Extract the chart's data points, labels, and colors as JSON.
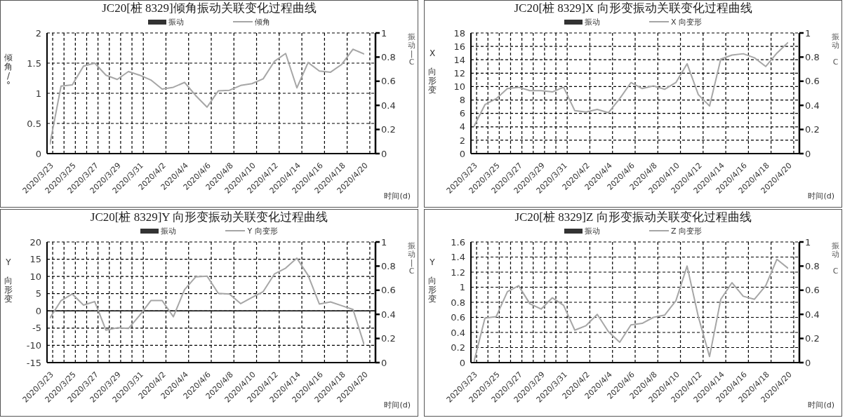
{
  "chart_data": [
    {
      "type": "line",
      "title": "JC20[桩 8329]倾角振动关联变化过程曲线",
      "xlabel": "时间(d)",
      "ylabel": "倾角/°",
      "y2label": "振动|C",
      "categories": [
        "2020/3/23",
        null,
        "2020/3/25",
        null,
        "2020/3/27",
        null,
        "2020/3/29",
        null,
        "2020/3/31",
        null,
        "2020/4/2",
        null,
        "2020/4/4",
        null,
        "2020/4/6",
        null,
        "2020/4/8",
        null,
        "2020/4/10",
        null,
        "2020/4/12",
        null,
        "2020/4/14",
        null,
        "2020/4/16",
        null,
        "2020/4/18",
        null,
        "2020/4/20"
      ],
      "series": [
        {
          "name": "振动",
          "type": "bar",
          "color": "#333333",
          "values": [
            null,
            null,
            null,
            null,
            null,
            null,
            null,
            null,
            null,
            null,
            null,
            null,
            null,
            null,
            null,
            null,
            null,
            null,
            null,
            null,
            null,
            null,
            null,
            null,
            null,
            null,
            null,
            null,
            null
          ]
        },
        {
          "name": "倾角",
          "color": "#a6a6a6",
          "values": [
            0.15,
            1.12,
            1.14,
            1.45,
            1.5,
            1.3,
            1.23,
            1.36,
            1.3,
            1.22,
            1.07,
            1.1,
            1.18,
            0.96,
            0.77,
            1.04,
            1.05,
            1.13,
            1.16,
            1.24,
            1.53,
            1.66,
            1.09,
            1.51,
            1.37,
            1.35,
            1.48,
            1.73,
            1.65
          ]
        }
      ],
      "ylim": [
        0,
        2
      ],
      "yticks": [
        0,
        0.5,
        1,
        1.5,
        2
      ],
      "y2lim": [
        0,
        1
      ],
      "y2ticks": [
        0,
        0.2,
        0.4,
        0.6,
        0.8,
        1
      ],
      "grid": true,
      "legend": "top",
      "marker": "none",
      "line_style": "solid"
    },
    {
      "type": "line",
      "title": "JC20[桩 8329]X 向形变振动关联变化过程曲线",
      "xlabel": "时间(d)",
      "ylabel": "X 向形变",
      "y2label": "振动 C",
      "categories": [
        "2020/3/23",
        null,
        "2020/3/25",
        null,
        "2020/3/27",
        null,
        "2020/3/29",
        null,
        "2020/3/31",
        null,
        "2020/4/2",
        null,
        "2020/4/4",
        null,
        "2020/4/6",
        null,
        "2020/4/8",
        null,
        "2020/4/10",
        null,
        "2020/4/12",
        null,
        "2020/4/14",
        null,
        "2020/4/16",
        null,
        "2020/4/18",
        null,
        "2020/4/20"
      ],
      "series": [
        {
          "name": "振动",
          "type": "bar",
          "color": "#333333",
          "values": [
            null,
            null,
            null,
            null,
            null,
            null,
            null,
            null,
            null,
            null,
            null,
            null,
            null,
            null,
            null,
            null,
            null,
            null,
            null,
            null,
            null,
            null,
            null,
            null,
            null,
            null,
            null,
            null,
            null
          ]
        },
        {
          "name": "X 向变形",
          "color": "#a6a6a6",
          "values": [
            4,
            7.3,
            8.2,
            9.7,
            9.9,
            9.4,
            9.4,
            9.2,
            9.9,
            6.4,
            6.2,
            6.6,
            6.1,
            8.2,
            10.6,
            9.7,
            10.1,
            9.6,
            10.6,
            13.4,
            8.8,
            7.1,
            14.1,
            14.7,
            14.9,
            14.3,
            13,
            15,
            16.6
          ]
        }
      ],
      "ylim": [
        0,
        18
      ],
      "yticks": [
        0,
        2,
        4,
        6,
        8,
        10,
        12,
        14,
        16,
        18
      ],
      "y2lim": [
        0,
        1
      ],
      "y2ticks": [
        0,
        0.2,
        0.4,
        0.6,
        0.8,
        1
      ],
      "grid": true,
      "legend": "top",
      "marker": "none",
      "line_style": "solid"
    },
    {
      "type": "line",
      "title": "JC20[桩 8329]Y 向形变振动关联变化过程曲线",
      "xlabel": "时间(d)",
      "ylabel": "Y 向形变",
      "y2label": "振动|C",
      "categories": [
        "2020/3/23",
        null,
        "2020/3/25",
        null,
        "2020/3/27",
        null,
        "2020/3/29",
        null,
        "2020/3/31",
        null,
        "2020/4/2",
        null,
        "2020/4/4",
        null,
        "2020/4/6",
        null,
        "2020/4/8",
        null,
        "2020/4/10",
        null,
        "2020/4/12",
        null,
        "2020/4/14",
        null,
        "2020/4/16",
        null,
        "2020/4/18",
        null,
        "2020/4/20"
      ],
      "series": [
        {
          "name": "振动",
          "type": "bar",
          "color": "#333333",
          "values": [
            null,
            null,
            null,
            null,
            null,
            null,
            null,
            null,
            null,
            null,
            null,
            null,
            null,
            null,
            null,
            null,
            null,
            null,
            null,
            null,
            null,
            null,
            null,
            null,
            null,
            null,
            null,
            null,
            null
          ]
        },
        {
          "name": "Y 向变形",
          "color": "#a6a6a6",
          "values": [
            -2.1,
            3,
            4.9,
            1.7,
            2.7,
            -5.6,
            -4.9,
            -5.1,
            -1.3,
            3,
            3,
            -1.7,
            6.2,
            9.9,
            10.1,
            5.1,
            4.9,
            2.1,
            3.9,
            5.6,
            10.7,
            12.4,
            15.3,
            10.3,
            2,
            2.6,
            1.5,
            0.4,
            -9.9
          ]
        }
      ],
      "ylim": [
        -15,
        20
      ],
      "yticks": [
        -15,
        -10,
        -5,
        0,
        5,
        10,
        15,
        20
      ],
      "y2lim": [
        0,
        1
      ],
      "y2ticks": [
        0,
        0.2,
        0.4,
        0.6,
        0.8,
        1
      ],
      "grid": true,
      "legend": "top",
      "marker": "none",
      "line_style": "solid",
      "ref_lines": [
        {
          "axis": "y",
          "value": 0,
          "color": "#000000"
        }
      ]
    },
    {
      "type": "line",
      "title": "JC20[桩 8329]Z 向形变振动关联变化过程曲线",
      "xlabel": "时间(d)",
      "ylabel": "Y 向形变",
      "y2label": "振动 C",
      "categories": [
        "2020/3/23",
        null,
        "2020/3/25",
        null,
        "2020/3/27",
        null,
        "2020/3/29",
        null,
        "2020/3/31",
        null,
        "2020/4/2",
        null,
        "2020/4/4",
        null,
        "2020/4/6",
        null,
        "2020/4/8",
        null,
        "2020/4/10",
        null,
        "2020/4/12",
        null,
        "2020/4/14",
        null,
        "2020/4/16",
        null,
        "2020/4/18",
        null,
        "2020/4/20"
      ],
      "series": [
        {
          "name": "振动",
          "type": "bar",
          "color": "#333333",
          "values": [
            null,
            null,
            null,
            null,
            null,
            null,
            null,
            null,
            null,
            null,
            null,
            null,
            null,
            null,
            null,
            null,
            null,
            null,
            null,
            null,
            null,
            null,
            null,
            null,
            null,
            null,
            null,
            null,
            null
          ]
        },
        {
          "name": "Z 向变形",
          "color": "#a6a6a6",
          "values": [
            0,
            0.59,
            0.61,
            0.94,
            1.02,
            0.78,
            0.71,
            0.86,
            0.76,
            0.43,
            0.49,
            0.64,
            0.41,
            0.27,
            0.5,
            0.52,
            0.6,
            0.63,
            0.82,
            1.28,
            0.61,
            0.08,
            0.84,
            1.06,
            0.88,
            0.84,
            1.02,
            1.37,
            1.25
          ]
        }
      ],
      "ylim": [
        0,
        1.6
      ],
      "yticks": [
        0,
        0.2,
        0.4,
        0.6,
        0.8,
        1,
        1.2,
        1.4,
        1.6
      ],
      "y2lim": [
        0,
        1
      ],
      "y2ticks": [
        0,
        0.2,
        0.4,
        0.6,
        0.8,
        1
      ],
      "grid": true,
      "legend": "top",
      "marker": "none",
      "line_style": "solid"
    }
  ]
}
